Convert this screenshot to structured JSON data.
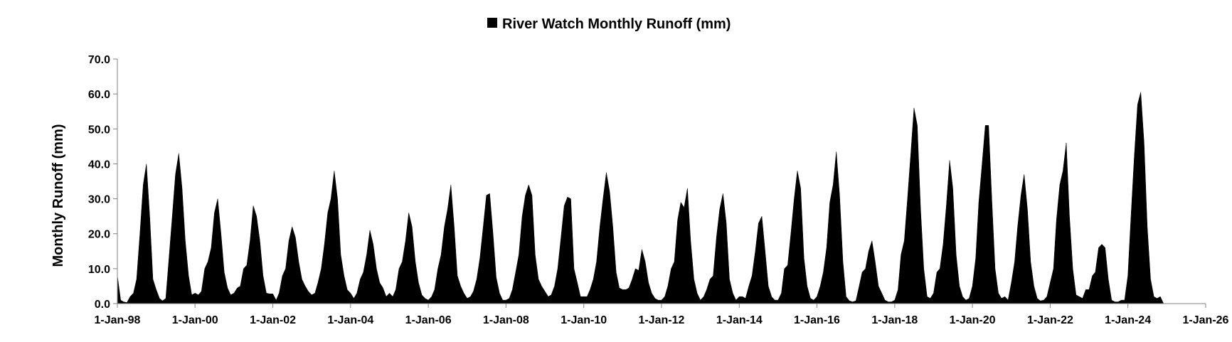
{
  "chart_data": {
    "type": "area",
    "title": "",
    "xlabel": "",
    "ylabel": "Monthly Runoff (mm)",
    "ylim": [
      0,
      70
    ],
    "xlim": [
      "1998-01-01",
      "2026-01-01"
    ],
    "yticks": [
      "0.0",
      "10.0",
      "20.0",
      "30.0",
      "40.0",
      "50.0",
      "60.0",
      "70.0"
    ],
    "xticks": [
      {
        "date": "1998-01-01",
        "label": "1-Jan-98"
      },
      {
        "date": "2000-01-01",
        "label": "1-Jan-00"
      },
      {
        "date": "2002-01-01",
        "label": "1-Jan-02"
      },
      {
        "date": "2004-01-01",
        "label": "1-Jan-04"
      },
      {
        "date": "2006-01-01",
        "label": "1-Jan-06"
      },
      {
        "date": "2008-01-01",
        "label": "1-Jan-08"
      },
      {
        "date": "2010-01-01",
        "label": "1-Jan-10"
      },
      {
        "date": "2012-01-01",
        "label": "1-Jan-12"
      },
      {
        "date": "2014-01-01",
        "label": "1-Jan-14"
      },
      {
        "date": "2016-01-01",
        "label": "1-Jan-16"
      },
      {
        "date": "2018-01-01",
        "label": "1-Jan-18"
      },
      {
        "date": "2020-01-01",
        "label": "1-Jan-20"
      },
      {
        "date": "2022-01-01",
        "label": "1-Jan-22"
      },
      {
        "date": "2024-01-01",
        "label": "1-Jan-24"
      },
      {
        "date": "2026-01-01",
        "label": "1-Jan-26"
      }
    ],
    "grid": false,
    "legend": {
      "position": "top-center"
    },
    "series": [
      {
        "name": "River Watch Monthly Runoff (mm)",
        "color": "#000000",
        "start": "1998-01-01",
        "frequency": "monthly",
        "values": [
          8,
          1,
          0.5,
          0.3,
          2,
          3,
          7,
          20,
          34,
          40,
          25,
          7,
          4,
          1.5,
          0.8,
          1.5,
          13,
          25,
          37,
          43,
          33,
          18,
          8,
          2.5,
          3,
          2.5,
          3.5,
          10,
          12,
          16,
          26,
          30,
          20,
          9,
          4.5,
          2.5,
          3,
          4.5,
          5,
          10,
          11,
          18,
          28,
          25,
          18,
          8,
          3,
          2.8,
          2.8,
          1,
          3,
          8,
          10,
          18,
          22,
          19,
          12,
          7,
          5,
          3.5,
          2.5,
          3,
          6,
          10,
          17,
          26,
          30,
          38,
          30,
          14,
          8,
          4,
          3,
          1.5,
          3,
          7,
          9,
          14,
          21,
          17,
          10,
          6,
          4.5,
          2,
          3,
          2,
          4,
          10,
          12,
          18,
          26,
          22,
          12,
          6,
          2.5,
          1.5,
          1,
          2,
          4,
          10,
          14,
          22,
          27,
          34,
          22,
          8,
          5,
          3,
          1.5,
          2,
          3.5,
          7,
          13,
          22,
          31,
          31.5,
          20,
          7.5,
          3,
          1,
          1,
          1.5,
          4,
          9,
          14,
          25,
          31,
          34,
          31,
          14,
          7,
          5,
          3.5,
          2,
          2.5,
          5,
          10,
          19,
          28,
          30.5,
          30,
          10,
          6,
          2,
          2,
          2,
          4,
          7,
          12,
          22,
          30,
          37.5,
          32,
          22,
          9,
          4.5,
          4,
          4,
          4.5,
          7,
          10,
          9.5,
          15.5,
          12,
          6,
          3,
          1.5,
          1,
          1,
          2,
          5,
          10,
          12,
          24,
          29,
          27.5,
          33,
          18,
          7,
          3,
          1,
          2,
          4,
          7,
          8,
          19,
          27,
          31.5,
          23,
          7,
          3,
          1,
          2,
          2,
          1.5,
          5,
          8,
          15,
          23,
          25,
          15,
          5,
          2,
          1,
          1,
          3,
          10,
          11,
          20,
          30,
          38,
          33,
          13,
          5,
          1.5,
          1,
          2,
          5,
          9,
          16,
          29,
          34,
          43.5,
          31,
          12,
          2,
          0.8,
          0.5,
          0.8,
          5,
          9,
          10,
          15,
          18,
          12,
          5,
          3,
          1,
          0.5,
          0.5,
          1,
          4,
          14,
          18,
          30,
          43,
          56,
          51,
          27,
          10,
          2,
          1.5,
          3,
          9,
          10,
          17,
          28,
          41,
          33,
          14,
          5,
          2,
          1,
          1.5,
          5,
          13,
          29,
          40,
          51,
          51,
          30,
          10,
          3,
          1.5,
          2,
          1,
          6,
          12,
          22,
          31,
          37,
          27,
          12,
          5,
          1.5,
          0.8,
          1,
          2,
          6,
          10,
          24,
          34,
          38,
          46,
          25,
          10,
          2.5,
          2,
          1.5,
          4,
          4,
          8,
          9,
          16,
          17,
          16,
          7,
          1,
          0.5,
          0.5,
          1,
          1,
          8,
          26,
          42,
          57,
          60.5,
          46,
          22,
          7,
          2,
          1.5,
          2,
          0
        ]
      }
    ]
  }
}
